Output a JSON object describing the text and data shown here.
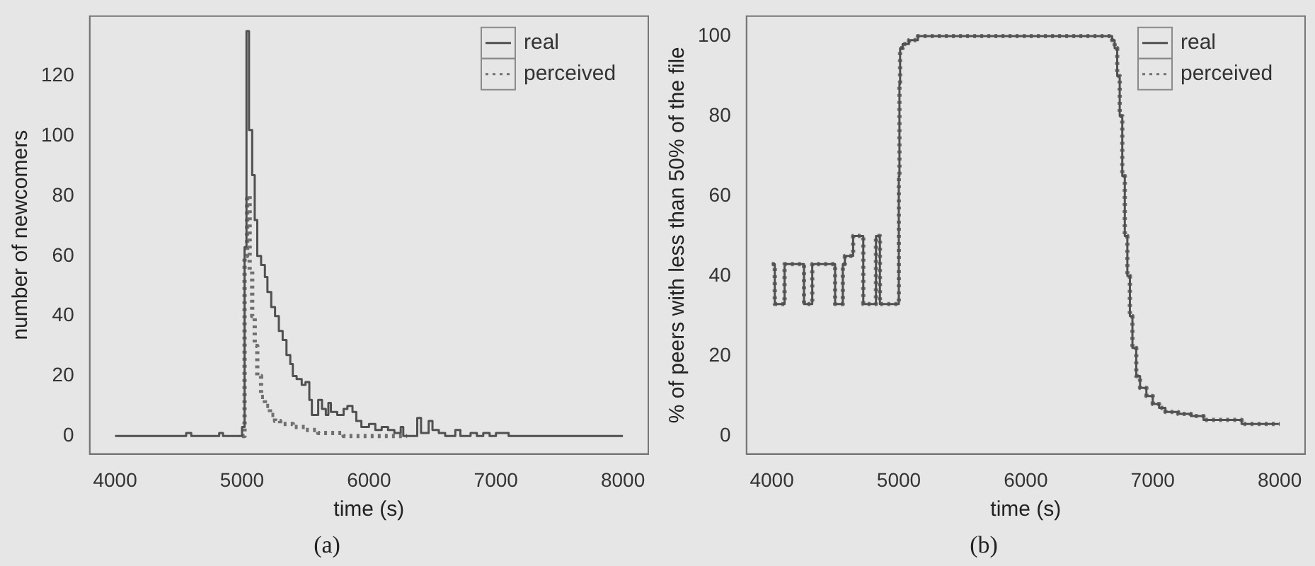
{
  "chart_data": [
    {
      "type": "step",
      "title": "(a)",
      "xlabel": "time (s)",
      "ylabel": "number of newcomers",
      "xlim": [
        3800,
        8200
      ],
      "ylim": [
        -6,
        140
      ],
      "xticks": [
        4000,
        5000,
        6000,
        7000,
        8000
      ],
      "yticks": [
        0,
        20,
        40,
        60,
        80,
        100,
        120
      ],
      "legend": "top right",
      "grid": false,
      "marker": "none",
      "series": [
        {
          "name": "real",
          "color": "#505050",
          "line_style": "solid",
          "x": [
            4000,
            4560,
            4600,
            4820,
            4850,
            5000,
            5020,
            5035,
            5055,
            5080,
            5100,
            5120,
            5150,
            5180,
            5200,
            5230,
            5260,
            5290,
            5320,
            5350,
            5380,
            5400,
            5430,
            5470,
            5500,
            5530,
            5550,
            5600,
            5630,
            5660,
            5680,
            5700,
            5750,
            5800,
            5830,
            5870,
            5900,
            5940,
            6000,
            6050,
            6100,
            6150,
            6200,
            6250,
            6270,
            6380,
            6410,
            6470,
            6500,
            6550,
            6600,
            6680,
            6720,
            6800,
            6850,
            6900,
            6950,
            7000,
            7100,
            8000
          ],
          "values": [
            0,
            1,
            0,
            1,
            0,
            3,
            63,
            135,
            102,
            87,
            72,
            60,
            57,
            53,
            48,
            43,
            40,
            35,
            32,
            27,
            24,
            20,
            19,
            17,
            18,
            12,
            7,
            12,
            9,
            7,
            11,
            8,
            7,
            9,
            10,
            8,
            5,
            3,
            4,
            2,
            3,
            2,
            1,
            3,
            0,
            6,
            1,
            5,
            2,
            1,
            0,
            2,
            0,
            1,
            0,
            1,
            0,
            1,
            0,
            0
          ]
        },
        {
          "name": "perceived",
          "color": "#707070",
          "line_style": "dotted",
          "x": [
            5000,
            5020,
            5040,
            5060,
            5080,
            5100,
            5120,
            5150,
            5180,
            5220,
            5260,
            5300,
            5400,
            5500,
            5600,
            5800,
            6300
          ],
          "values": [
            0,
            60,
            80,
            55,
            40,
            30,
            20,
            13,
            10,
            7,
            5,
            4,
            3,
            2,
            1,
            0,
            0
          ]
        }
      ]
    },
    {
      "type": "step",
      "title": "(b)",
      "xlabel": "time (s)",
      "ylabel": "% of peers with less than 50% of the file",
      "xlim": [
        3800,
        8200
      ],
      "ylim": [
        -4.5,
        105
      ],
      "xticks": [
        4000,
        5000,
        6000,
        7000,
        8000
      ],
      "yticks": [
        0,
        20,
        40,
        60,
        80,
        100
      ],
      "legend": "top right",
      "grid": false,
      "marker": "none",
      "series": [
        {
          "name": "real",
          "color": "#505050",
          "line_style": "solid",
          "x": [
            4000,
            4023,
            4100,
            4253,
            4318,
            4498,
            4559,
            4575,
            4640,
            4720,
            4820,
            4851,
            5000,
            5005,
            5010,
            5030,
            5080,
            5150,
            6680,
            6700,
            6720,
            6740,
            6760,
            6780,
            6800,
            6820,
            6840,
            6870,
            6900,
            6950,
            7000,
            7050,
            7100,
            7200,
            7300,
            7400,
            7700,
            8000
          ],
          "values": [
            43,
            33,
            43,
            33,
            43,
            33,
            43,
            45,
            50,
            33,
            50,
            33,
            65,
            88,
            97,
            98,
            99,
            100,
            99,
            97,
            90,
            80,
            65,
            50,
            40,
            30,
            22,
            15,
            12,
            10,
            8,
            7,
            6,
            5.5,
            5,
            4,
            3,
            3
          ]
        },
        {
          "name": "perceived",
          "color": "#707070",
          "line_style": "dotted",
          "x": [
            4000,
            4023,
            4100,
            4253,
            4318,
            4498,
            4559,
            4575,
            4640,
            4720,
            4820,
            4851,
            5000,
            5005,
            5010,
            5030,
            5080,
            5150,
            6680,
            6700,
            6720,
            6740,
            6760,
            6780,
            6800,
            6820,
            6840,
            6870,
            6900,
            6950,
            7000,
            7050,
            7100,
            7200,
            7300,
            7400,
            7700,
            8000
          ],
          "values": [
            43,
            33,
            43,
            33,
            43,
            33,
            43,
            45,
            50,
            33,
            50,
            33,
            65,
            88,
            97,
            98,
            99,
            100,
            99,
            97,
            90,
            80,
            65,
            50,
            40,
            30,
            22,
            15,
            12,
            10,
            8,
            7,
            6,
            5.5,
            5,
            4,
            3,
            3
          ]
        }
      ]
    }
  ]
}
